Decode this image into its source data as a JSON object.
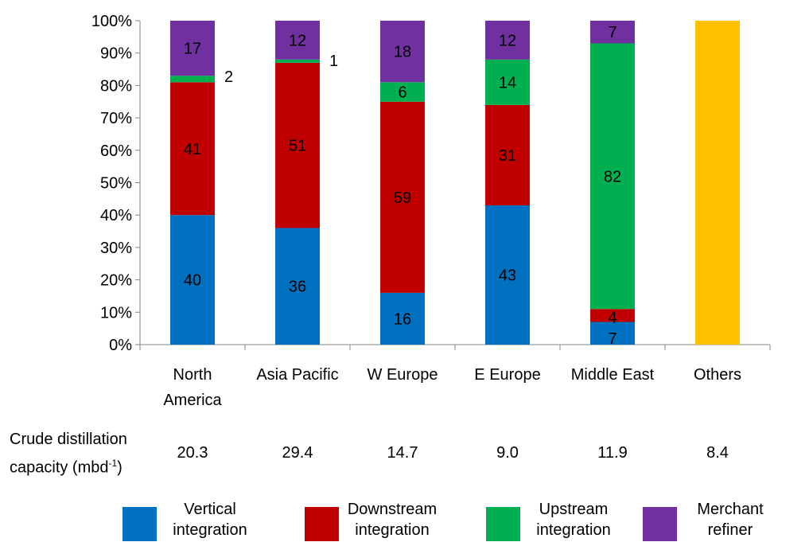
{
  "chart_data": {
    "type": "bar",
    "stacked": true,
    "percent": true,
    "categories": [
      "North America",
      "Asia Pacific",
      "W Europe",
      "E Europe",
      "Middle East",
      "Others"
    ],
    "category_label_lines": [
      [
        "North",
        "America"
      ],
      [
        "Asia Pacific"
      ],
      [
        "W Europe"
      ],
      [
        "E Europe"
      ],
      [
        "Middle East"
      ],
      [
        "Others"
      ]
    ],
    "series": [
      {
        "name": "Vertical integration",
        "legend_lines": [
          "Vertical",
          "integration"
        ],
        "color": "#0070C0",
        "values": [
          40,
          36,
          16,
          43,
          7,
          null
        ]
      },
      {
        "name": "Downstream integration",
        "legend_lines": [
          "Downstream",
          "integration"
        ],
        "color": "#C00000",
        "values": [
          41,
          51,
          59,
          31,
          4,
          null
        ]
      },
      {
        "name": "Upstream integration",
        "legend_lines": [
          "Upstream",
          "integration"
        ],
        "color": "#00B050",
        "values": [
          2,
          1,
          6,
          14,
          82,
          null
        ]
      },
      {
        "name": "Merchant refiner",
        "legend_lines": [
          "Merchant",
          "refiner"
        ],
        "color": "#7030A0",
        "values": [
          17,
          12,
          18,
          12,
          7,
          null
        ]
      }
    ],
    "others_fill": {
      "color": "#FFC000",
      "value": 100
    },
    "y_ticks": [
      "0%",
      "10%",
      "20%",
      "30%",
      "40%",
      "50%",
      "60%",
      "70%",
      "80%",
      "90%",
      "100%"
    ],
    "ylim": [
      0,
      100
    ],
    "grid": false,
    "legend_position": "bottom",
    "capacity_row": {
      "label_lines": [
        "Crude distillation",
        "capacity (mbd"
      ],
      "label_sup": "-1",
      "label_tail": ")",
      "values": [
        "20.3",
        "29.4",
        "14.7",
        "9.0",
        "11.9",
        "8.4"
      ]
    }
  }
}
